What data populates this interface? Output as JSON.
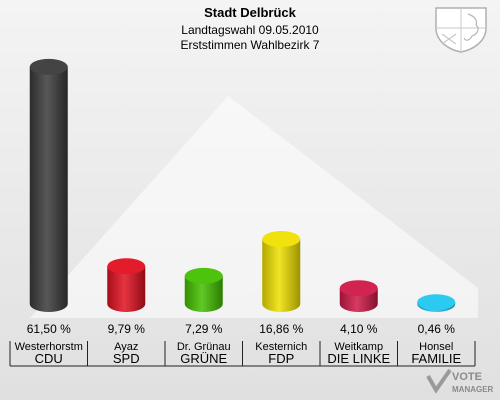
{
  "header": {
    "title": "Stadt Delbrück",
    "subtitle": "Landtagswahl 09.05.2010",
    "subtitle2": "Erststimmen Wahlbezirk 7"
  },
  "chart_data": {
    "type": "bar",
    "title": "Stadt Delbrück",
    "categories": [
      "Westerhorstm",
      "Ayaz",
      "Dr. Grünau",
      "Kesternich",
      "Weitkamp",
      "Honsel"
    ],
    "parties": [
      "CDU",
      "SPD",
      "GRÜNE",
      "FDP",
      "DIE LINKE",
      "FAMILIE"
    ],
    "values": [
      61.5,
      9.79,
      7.29,
      16.86,
      4.1,
      0.46
    ],
    "value_labels": [
      "61,50 %",
      "9,79 %",
      "7,29 %",
      "16,86 %",
      "4,10 %",
      "0,46 %"
    ],
    "colors": [
      "#3a3a3a",
      "#e01020",
      "#44c000",
      "#f0e000",
      "#d01848",
      "#20c8f0"
    ],
    "ylim": [
      0,
      62
    ]
  },
  "logo": {
    "line1": "VOTE",
    "line2": "MANAGER"
  }
}
